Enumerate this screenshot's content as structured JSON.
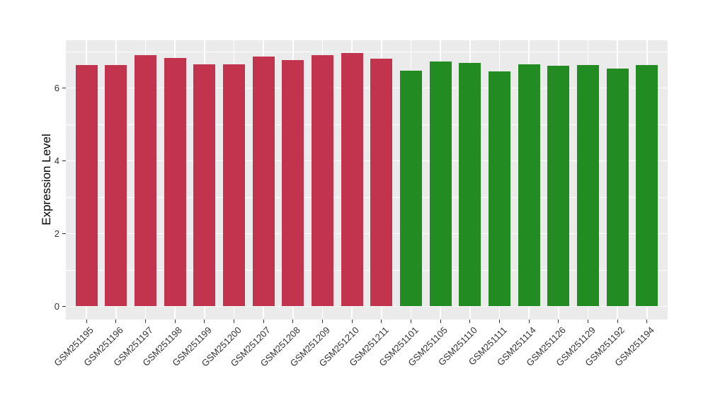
{
  "figure": {
    "background": "#FFFFFF"
  },
  "chart_data": {
    "type": "bar",
    "title": "",
    "xlabel": "",
    "ylabel": "Expression Level",
    "yticks": [
      0,
      2,
      4,
      6
    ],
    "minor_gridlines_at": [
      1,
      3,
      5,
      7
    ],
    "ylim": [
      -0.36,
      7.31
    ],
    "grid": true,
    "legend": "none",
    "panel_background": "#EBEBEB",
    "gridline_color": "#FFFFFF",
    "axis_text_color": "#333333",
    "group_colors": {
      "crimson": "#C2334E",
      "green": "#228B22"
    },
    "bars": [
      {
        "label": "GSM251195",
        "value": 6.63,
        "group": "crimson"
      },
      {
        "label": "GSM251196",
        "value": 6.63,
        "group": "crimson"
      },
      {
        "label": "GSM251197",
        "value": 6.91,
        "group": "crimson"
      },
      {
        "label": "GSM251198",
        "value": 6.83,
        "group": "crimson"
      },
      {
        "label": "GSM251199",
        "value": 6.66,
        "group": "crimson"
      },
      {
        "label": "GSM251200",
        "value": 6.66,
        "group": "crimson"
      },
      {
        "label": "GSM251207",
        "value": 6.86,
        "group": "crimson"
      },
      {
        "label": "GSM251208",
        "value": 6.76,
        "group": "crimson"
      },
      {
        "label": "GSM251209",
        "value": 6.9,
        "group": "crimson"
      },
      {
        "label": "GSM251210",
        "value": 6.97,
        "group": "crimson"
      },
      {
        "label": "GSM251211",
        "value": 6.81,
        "group": "crimson"
      },
      {
        "label": "GSM251101",
        "value": 6.48,
        "group": "green"
      },
      {
        "label": "GSM251105",
        "value": 6.72,
        "group": "green"
      },
      {
        "label": "GSM251110",
        "value": 6.69,
        "group": "green"
      },
      {
        "label": "GSM251111",
        "value": 6.46,
        "group": "green"
      },
      {
        "label": "GSM251114",
        "value": 6.66,
        "group": "green"
      },
      {
        "label": "GSM251126",
        "value": 6.62,
        "group": "green"
      },
      {
        "label": "GSM251129",
        "value": 6.63,
        "group": "green"
      },
      {
        "label": "GSM251192",
        "value": 6.53,
        "group": "green"
      },
      {
        "label": "GSM251194",
        "value": 6.64,
        "group": "green"
      }
    ]
  }
}
